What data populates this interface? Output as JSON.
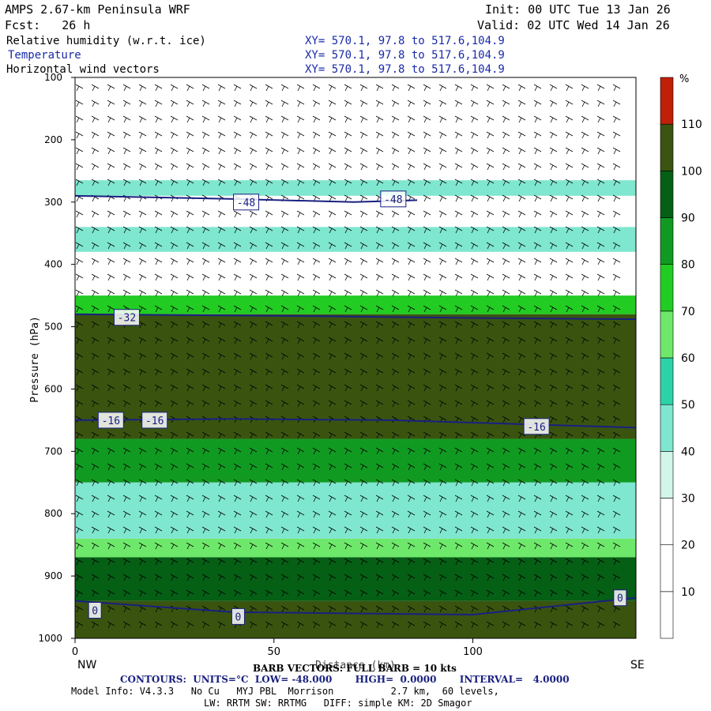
{
  "header": {
    "model": "AMPS 2.67-km Peninsula WRF",
    "init": "Init: 00 UTC Tue 13 Jan 26",
    "fcst": "Fcst:   26 h",
    "valid": "Valid: 02 UTC Wed 14 Jan 26",
    "fields": [
      {
        "name": "Relative humidity (w.r.t. ice)",
        "xy": "XY= 570.1, 97.8 to 517.6,104.9"
      },
      {
        "name": "Temperature",
        "xy": "XY= 570.1, 97.8 to 517.6,104.9"
      },
      {
        "name": "Horizontal wind vectors",
        "xy": "XY= 570.1, 97.8 to 517.6,104.9"
      }
    ]
  },
  "colors": {
    "contour": "#1a2080",
    "rh_bands": [
      "#ffffff",
      "#ffffff",
      "#ffffff",
      "#d2f5ea",
      "#7fe6cf",
      "#2dd3a8",
      "#6ee86b",
      "#22cc22",
      "#119a22",
      "#055f15",
      "#3a5410",
      "#c02008"
    ]
  },
  "chart_data": {
    "type": "heatmap",
    "xlabel": "Distance (km)",
    "ylabel": "Pressure (hPa)",
    "xlim": [
      0,
      141
    ],
    "ylim": [
      1000,
      100
    ],
    "x_ticks": [
      0,
      50,
      100
    ],
    "y_ticks": [
      100,
      200,
      300,
      400,
      500,
      600,
      700,
      800,
      900,
      1000
    ],
    "left_end": "NW",
    "right_end": "SE",
    "colorbar": {
      "unit": "%",
      "levels": [
        10,
        20,
        30,
        40,
        50,
        60,
        70,
        80,
        90,
        100,
        110
      ]
    },
    "rh_layers": [
      {
        "p_top": 100,
        "p_bot": 265,
        "rh": 5
      },
      {
        "p_top": 265,
        "p_bot": 290,
        "rh": 45
      },
      {
        "p_top": 290,
        "p_bot": 340,
        "rh": 25
      },
      {
        "p_top": 340,
        "p_bot": 380,
        "rh": 45
      },
      {
        "p_top": 380,
        "p_bot": 450,
        "rh": 15
      },
      {
        "p_top": 450,
        "p_bot": 480,
        "rh": 75
      },
      {
        "p_top": 480,
        "p_bot": 680,
        "rh": 105
      },
      {
        "p_top": 680,
        "p_bot": 750,
        "rh": 85
      },
      {
        "p_top": 750,
        "p_bot": 840,
        "rh": 45
      },
      {
        "p_top": 840,
        "p_bot": 870,
        "rh": 65
      },
      {
        "p_top": 870,
        "p_bot": 940,
        "rh": 95
      },
      {
        "p_top": 940,
        "p_bot": 1000,
        "rh": 105
      }
    ],
    "temperature_contours": [
      {
        "label": "-48",
        "x": [
          0,
          40,
          70,
          86
        ],
        "p": [
          290,
          295,
          300,
          297
        ]
      },
      {
        "label": "-32",
        "x": [
          0,
          60,
          100,
          141
        ],
        "p": [
          480,
          483,
          486,
          488
        ]
      },
      {
        "label": "-16",
        "x": [
          0,
          40,
          80,
          141
        ],
        "p": [
          650,
          648,
          650,
          662
        ]
      },
      {
        "label": "0",
        "x": [
          0,
          40,
          100,
          141
        ],
        "p": [
          940,
          958,
          962,
          935
        ]
      }
    ],
    "contour_labels": [
      {
        "text": "-48",
        "x": 43,
        "p": 300
      },
      {
        "text": "-48",
        "x": 80,
        "p": 295
      },
      {
        "text": "-32",
        "x": 13,
        "p": 485
      },
      {
        "text": "-16",
        "x": 9,
        "p": 650
      },
      {
        "text": "-16",
        "x": 20,
        "p": 650
      },
      {
        "text": "-16",
        "x": 116,
        "p": 660
      },
      {
        "text": "0",
        "x": 5,
        "p": 955
      },
      {
        "text": "0",
        "x": 41,
        "p": 965
      },
      {
        "text": "0",
        "x": 137,
        "p": 935
      }
    ]
  },
  "footer": {
    "barb_title": "BARB VECTORS: FULL BARB = 10 kts",
    "contours": "CONTOURS:  UNITS=°C  LOW= -48.000       HIGH=  0.0000       INTERVAL=   4.0000",
    "model_info": "Model Info: V4.3.3   No Cu   MYJ PBL  Morrison          2.7 km,  60 levels,",
    "model_info2": "LW: RRTM SW: RRTMG   DIFF: simple KM: 2D Smagor"
  }
}
